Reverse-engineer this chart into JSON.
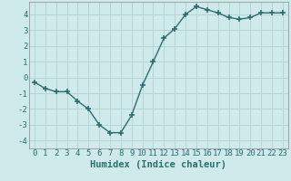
{
  "x": [
    0,
    1,
    2,
    3,
    4,
    5,
    6,
    7,
    8,
    9,
    10,
    11,
    12,
    13,
    14,
    15,
    16,
    17,
    18,
    19,
    20,
    21,
    22,
    23
  ],
  "y": [
    -0.3,
    -0.7,
    -0.9,
    -0.9,
    -1.5,
    -2.0,
    -3.0,
    -3.5,
    -3.5,
    -2.4,
    -0.5,
    1.0,
    2.5,
    3.1,
    4.0,
    4.5,
    4.3,
    4.1,
    3.8,
    3.7,
    3.8,
    4.1,
    4.1,
    4.1
  ],
  "line_color": "#2d6e6e",
  "marker": "+",
  "marker_size": 4,
  "marker_lw": 1.2,
  "bg_color": "#ceeaea",
  "grid_color": "#b8d4d4",
  "xlabel": "Humidex (Indice chaleur)",
  "xlim": [
    -0.5,
    23.5
  ],
  "ylim": [
    -4.5,
    4.8
  ],
  "yticks": [
    -4,
    -3,
    -2,
    -1,
    0,
    1,
    2,
    3,
    4
  ],
  "xticks": [
    0,
    1,
    2,
    3,
    4,
    5,
    6,
    7,
    8,
    9,
    10,
    11,
    12,
    13,
    14,
    15,
    16,
    17,
    18,
    19,
    20,
    21,
    22,
    23
  ],
  "xlabel_fontsize": 7.5,
  "tick_fontsize": 6.5,
  "line_width": 1.0
}
